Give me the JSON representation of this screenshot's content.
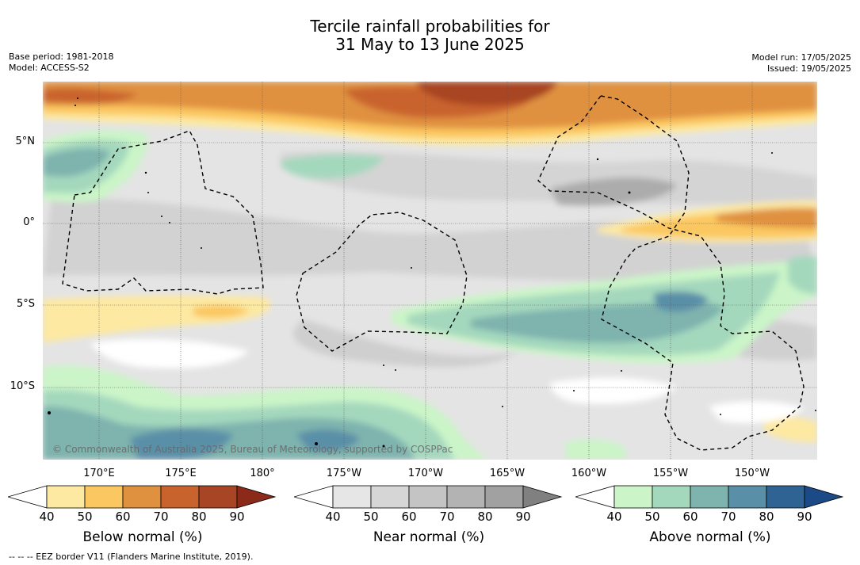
{
  "title": {
    "line1": "Tercile rainfall probabilities for",
    "line2": "31 May to 13 June 2025"
  },
  "meta_left": {
    "base_period": "Base period: 1981-2018",
    "model": "Model: ACCESS-S2"
  },
  "meta_right": {
    "model_run": "Model run: 17/05/2025",
    "issued": "Issued: 19/05/2025"
  },
  "map": {
    "lat_labels": [
      "5°N",
      "0°",
      "5°S",
      "10°S"
    ],
    "lon_labels": [
      "170°E",
      "175°E",
      "180°",
      "175°W",
      "170°W",
      "165°W",
      "160°W",
      "155°W",
      "150°W"
    ],
    "copyright": "© Commonwealth of Australia 2025, Bureau of Meteorology, supported by COSPPac"
  },
  "colorbars": [
    {
      "label": "Below normal (%)",
      "ticks": [
        "40",
        "50",
        "60",
        "70",
        "80",
        "90"
      ],
      "colors": [
        "#fde9a2",
        "#fbc760",
        "#e0913f",
        "#c9632e",
        "#a84524",
        "#8c2a1a"
      ]
    },
    {
      "label": "Near normal (%)",
      "ticks": [
        "40",
        "50",
        "60",
        "70",
        "80",
        "90"
      ],
      "colors": [
        "#e6e6e6",
        "#d6d6d6",
        "#c4c4c4",
        "#b3b3b3",
        "#a1a1a1",
        "#808080"
      ]
    },
    {
      "label": "Above normal (%)",
      "ticks": [
        "40",
        "50",
        "60",
        "70",
        "80",
        "90"
      ],
      "colors": [
        "#cbf5c8",
        "#a4d8bd",
        "#7eb3ae",
        "#5a8fa8",
        "#2f6393",
        "#1b4a86"
      ]
    }
  ],
  "footnote": "-- -- -- EEZ border V11 (Flanders Marine Institute, 2019)."
}
